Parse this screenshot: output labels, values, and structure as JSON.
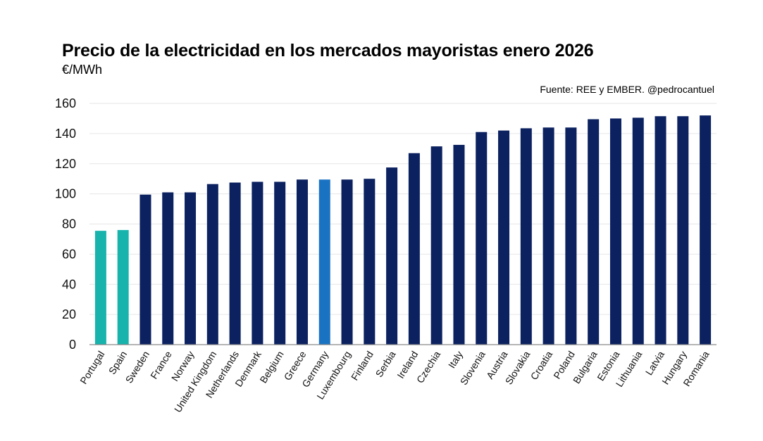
{
  "chart_data": {
    "type": "bar",
    "title": "Precio de la electricidad en los mercados mayoristas enero 2026",
    "subtitle": "€/MWh",
    "source": "Fuente: REE y EMBER. @pedrocantuel",
    "ylim": [
      0,
      160
    ],
    "yticks": [
      0,
      20,
      40,
      60,
      80,
      100,
      120,
      140,
      160
    ],
    "grid": true,
    "categories": [
      "Portugal",
      "Spain",
      "Sweden",
      "France",
      "Norway",
      "United Kingdom",
      "Netherlands",
      "Denmark",
      "Belgium",
      "Greece",
      "Germany",
      "Luxembourg",
      "Finland",
      "Serbia",
      "Ireland",
      "Czechia",
      "Italy",
      "Slovenia",
      "Austria",
      "Slovakia",
      "Croatia",
      "Poland",
      "Bulgaria",
      "Estonia",
      "Lithuania",
      "Latvia",
      "Hungary",
      "Romania"
    ],
    "values": [
      75.5,
      76,
      99.5,
      101,
      101,
      106.5,
      107.5,
      108,
      108,
      109.5,
      109.5,
      109.5,
      110,
      117.5,
      127,
      131.5,
      132.5,
      141,
      142,
      143.5,
      144,
      144,
      149.5,
      150,
      150.5,
      151.5,
      151.5,
      152
    ],
    "colors": {
      "default": "#0b2160",
      "highlight_iberia": "#17b3ac",
      "highlight_germany": "#1a73c2",
      "grid": "#e6e6e6",
      "axis": "#888888"
    },
    "bar_color_keys": [
      "highlight_iberia",
      "highlight_iberia",
      "default",
      "default",
      "default",
      "default",
      "default",
      "default",
      "default",
      "default",
      "highlight_germany",
      "default",
      "default",
      "default",
      "default",
      "default",
      "default",
      "default",
      "default",
      "default",
      "default",
      "default",
      "default",
      "default",
      "default",
      "default",
      "default",
      "default"
    ]
  }
}
